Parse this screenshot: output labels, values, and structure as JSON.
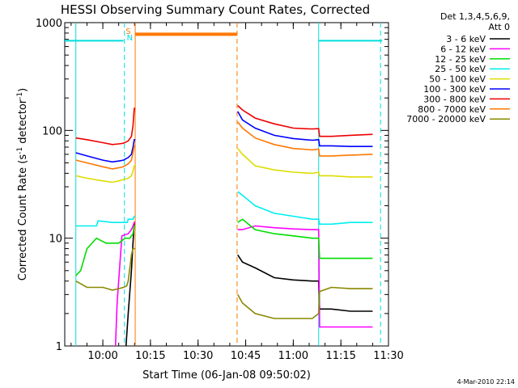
{
  "chart_data": {
    "type": "line",
    "title": "HESSI Observing Summary Count Rates, Corrected",
    "xlabel": "Start Time (06-Jan-08 09:50:02)",
    "ylabel_main": "Corrected Count Rate (s",
    "ylabel_sup1": "-1",
    "ylabel_mid": " detector",
    "ylabel_sup2": "-1",
    "ylabel_end": ")",
    "footer_date": "4-Mar-2010 22:14",
    "y_scale": "log",
    "ylim": [
      1,
      1000
    ],
    "xlim_minutes": [
      -32,
      70
    ],
    "y_ticks": [
      {
        "v": 1,
        "label": "1"
      },
      {
        "v": 10,
        "label": "10"
      },
      {
        "v": 100,
        "label": "100"
      },
      {
        "v": 1000,
        "label": "1000"
      }
    ],
    "x_ticks": [
      {
        "m": -20,
        "label": "10:00"
      },
      {
        "m": -5,
        "label": "10:15"
      },
      {
        "m": 10,
        "label": "10:30"
      },
      {
        "m": 25,
        "label": "10:45"
      },
      {
        "m": 40,
        "label": "11:00"
      },
      {
        "m": 55,
        "label": "11:15"
      },
      {
        "m": 70,
        "label": "11:30"
      }
    ],
    "legend_header": [
      "Det 1,3,4,5,6,9,",
      "Att 0"
    ],
    "series": [
      {
        "name": "3 - 6 keV",
        "color": "#000000",
        "values": [
          [
            -12.7,
            1
          ],
          [
            -12,
            2
          ],
          [
            -11,
            5
          ],
          [
            -10.5,
            9
          ],
          [
            -10.1,
            14
          ],
          [
            -9.8,
            14
          ],
          [
            22.5,
            7
          ],
          [
            24,
            6
          ],
          [
            28,
            5.3
          ],
          [
            34,
            4.3
          ],
          [
            40,
            4.1
          ],
          [
            46,
            4
          ],
          [
            48,
            4
          ],
          [
            48.3,
            2.2
          ],
          [
            52,
            2.2
          ],
          [
            58,
            2.1
          ],
          [
            65,
            2.1
          ]
        ]
      },
      {
        "name": "6 - 12 keV",
        "color": "#ff00ff",
        "values": [
          [
            -16,
            1
          ],
          [
            -15.5,
            2.5
          ],
          [
            -14,
            10.5
          ],
          [
            -12,
            11
          ],
          [
            -11,
            12
          ],
          [
            -10.5,
            13
          ],
          [
            -10.1,
            14
          ],
          [
            -9.8,
            14
          ],
          [
            22.5,
            12
          ],
          [
            24,
            12
          ],
          [
            28,
            13
          ],
          [
            34,
            12.5
          ],
          [
            40,
            12.2
          ],
          [
            46,
            12
          ],
          [
            48,
            12
          ],
          [
            48.3,
            1.5
          ],
          [
            52,
            1.5
          ],
          [
            58,
            1.5
          ],
          [
            65,
            1.5
          ]
        ]
      },
      {
        "name": "12 - 25 keV",
        "color": "#00dd00",
        "values": [
          [
            -28.5,
            4.5
          ],
          [
            -27,
            5
          ],
          [
            -25,
            8
          ],
          [
            -22,
            10
          ],
          [
            -19,
            9
          ],
          [
            -17,
            9
          ],
          [
            -15,
            9
          ],
          [
            -13,
            10
          ],
          [
            -11.5,
            10
          ],
          [
            -10.5,
            11
          ],
          [
            -10.1,
            13
          ],
          [
            -9.8,
            13
          ],
          [
            22.5,
            14
          ],
          [
            24,
            15
          ],
          [
            28,
            12
          ],
          [
            34,
            11
          ],
          [
            40,
            10.5
          ],
          [
            46,
            10
          ],
          [
            48,
            10
          ],
          [
            48.3,
            6.5
          ],
          [
            52,
            6.5
          ],
          [
            58,
            6.5
          ],
          [
            65,
            6.5
          ]
        ]
      },
      {
        "name": "25 - 50 keV",
        "color": "#00eeee",
        "values": [
          [
            -28.5,
            13
          ],
          [
            -22,
            13
          ],
          [
            -21.5,
            14.5
          ],
          [
            -17,
            14
          ],
          [
            -15,
            14
          ],
          [
            -12.3,
            14
          ],
          [
            -12,
            15
          ],
          [
            -11,
            15
          ],
          [
            -10.5,
            15
          ],
          [
            -10.1,
            16
          ],
          [
            -9.8,
            16
          ],
          [
            22.5,
            27
          ],
          [
            24,
            25
          ],
          [
            28,
            20
          ],
          [
            34,
            17
          ],
          [
            40,
            16
          ],
          [
            46,
            15
          ],
          [
            48,
            15
          ],
          [
            48.3,
            13.5
          ],
          [
            52,
            13.5
          ],
          [
            58,
            14
          ],
          [
            65,
            14
          ]
        ]
      },
      {
        "name": "50 - 100 keV",
        "color": "#dddd00",
        "values": [
          [
            -28.5,
            38
          ],
          [
            -25,
            36
          ],
          [
            -20,
            34
          ],
          [
            -17,
            33
          ],
          [
            -15,
            34
          ],
          [
            -13.5,
            35
          ],
          [
            -12,
            36
          ],
          [
            -11,
            38
          ],
          [
            -10.5,
            42
          ],
          [
            -10.1,
            47
          ],
          [
            -9.8,
            47
          ],
          [
            22.5,
            68
          ],
          [
            24,
            60
          ],
          [
            28,
            47
          ],
          [
            34,
            43
          ],
          [
            40,
            41
          ],
          [
            46,
            40
          ],
          [
            48,
            41
          ],
          [
            48.3,
            38
          ],
          [
            52,
            38
          ],
          [
            58,
            37
          ],
          [
            65,
            37
          ]
        ]
      },
      {
        "name": "100 - 300 keV",
        "color": "#0000ff",
        "values": [
          [
            -28.5,
            62
          ],
          [
            -25,
            58
          ],
          [
            -20,
            53
          ],
          [
            -17,
            51
          ],
          [
            -15,
            52
          ],
          [
            -13.5,
            53
          ],
          [
            -12,
            56
          ],
          [
            -11,
            60
          ],
          [
            -10.5,
            70
          ],
          [
            -10.1,
            82
          ],
          [
            -9.8,
            82
          ],
          [
            22.5,
            150
          ],
          [
            24,
            125
          ],
          [
            28,
            105
          ],
          [
            34,
            90
          ],
          [
            40,
            84
          ],
          [
            46,
            81
          ],
          [
            48,
            82
          ],
          [
            48.3,
            72
          ],
          [
            52,
            72
          ],
          [
            58,
            71
          ],
          [
            65,
            71
          ]
        ]
      },
      {
        "name": "300 - 800 keV",
        "color": "#ee0000",
        "values": [
          [
            -28.5,
            85
          ],
          [
            -25,
            82
          ],
          [
            -20,
            77
          ],
          [
            -17,
            74
          ],
          [
            -15,
            75
          ],
          [
            -13.5,
            76
          ],
          [
            -12,
            80
          ],
          [
            -11,
            88
          ],
          [
            -10.5,
            110
          ],
          [
            -10.1,
            160
          ],
          [
            -9.8,
            160
          ],
          [
            22.5,
            170
          ],
          [
            24,
            155
          ],
          [
            28,
            130
          ],
          [
            34,
            115
          ],
          [
            40,
            105
          ],
          [
            46,
            103
          ],
          [
            48,
            104
          ],
          [
            48.3,
            88
          ],
          [
            52,
            88
          ],
          [
            58,
            90
          ],
          [
            65,
            92
          ]
        ]
      },
      {
        "name": "800 - 7000 keV",
        "color": "#ff7700",
        "values": [
          [
            -28.5,
            53
          ],
          [
            -25,
            50
          ],
          [
            -20,
            46
          ],
          [
            -17,
            44
          ],
          [
            -15,
            45
          ],
          [
            -13.5,
            46
          ],
          [
            -12,
            49
          ],
          [
            -11,
            53
          ],
          [
            -10.5,
            62
          ],
          [
            -10.1,
            72
          ],
          [
            -9.8,
            72
          ],
          [
            22.5,
            120
          ],
          [
            24,
            105
          ],
          [
            28,
            85
          ],
          [
            34,
            74
          ],
          [
            40,
            68
          ],
          [
            46,
            66
          ],
          [
            48,
            67
          ],
          [
            48.3,
            58
          ],
          [
            52,
            58
          ],
          [
            58,
            59
          ],
          [
            65,
            60
          ]
        ]
      },
      {
        "name": "7000 - 20000 keV",
        "color": "#888800",
        "values": [
          [
            -28.5,
            4
          ],
          [
            -25,
            3.5
          ],
          [
            -20,
            3.5
          ],
          [
            -17,
            3.3
          ],
          [
            -15,
            3.4
          ],
          [
            -13.5,
            3.5
          ],
          [
            -12.5,
            3.6
          ],
          [
            -12,
            4
          ],
          [
            -11,
            7
          ],
          [
            -10.5,
            8
          ],
          [
            -10.1,
            8
          ],
          [
            -9.8,
            8
          ],
          [
            22.5,
            3
          ],
          [
            24,
            2.5
          ],
          [
            28,
            2
          ],
          [
            34,
            1.8
          ],
          [
            40,
            1.8
          ],
          [
            46,
            1.8
          ],
          [
            48,
            2
          ],
          [
            48.3,
            3.2
          ],
          [
            52,
            3.5
          ],
          [
            58,
            3.4
          ],
          [
            65,
            3.4
          ]
        ]
      }
    ],
    "state_bars": [
      {
        "color": "#00dddd",
        "y": 680,
        "segments": [
          [
            -32,
            -13.5
          ],
          [
            48,
            68
          ]
        ]
      },
      {
        "color": "#ff7700",
        "y": 780,
        "segments": [
          [
            -9.8,
            22.3
          ]
        ]
      }
    ],
    "vlines": [
      {
        "m": -28.5,
        "color": "#00dddd",
        "dashed": false
      },
      {
        "m": -13.2,
        "color": "#00dddd",
        "dashed": true
      },
      {
        "m": -9.8,
        "color": "#ff7700",
        "dashed": false
      },
      {
        "m": 22.3,
        "color": "#ff7700",
        "dashed": true
      },
      {
        "m": 48,
        "color": "#00dddd",
        "dashed": false
      },
      {
        "m": 67.5,
        "color": "#00dddd",
        "dashed": true
      }
    ],
    "markers": [
      {
        "label": "S",
        "color": "#ff7700",
        "m": -12
      },
      {
        "label": "N",
        "color": "#00dddd",
        "m": -11.5
      }
    ]
  }
}
